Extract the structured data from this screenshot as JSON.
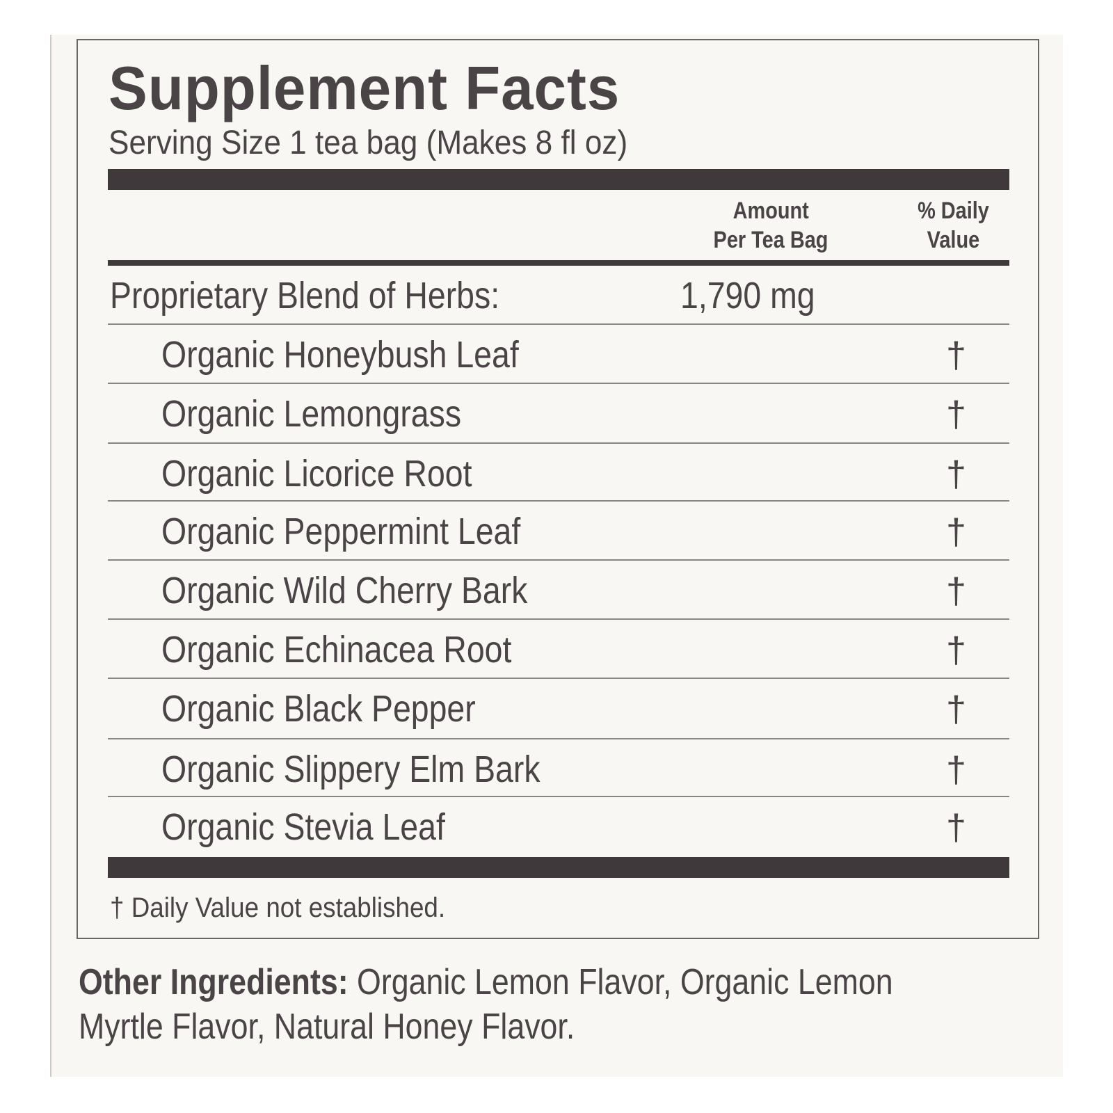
{
  "label": {
    "title": "Supplement Facts",
    "serving_size": "Serving Size 1 tea bag (Makes 8 fl oz)",
    "header": {
      "amount_line1": "Amount",
      "amount_line2": "Per Tea Bag",
      "dv_line1": "% Daily",
      "dv_line2": "Value"
    },
    "blend": {
      "name": "Proprietary Blend of Herbs:",
      "amount": "1,790 mg"
    },
    "ingredients": [
      {
        "name": "Organic Honeybush Leaf",
        "dv": "†"
      },
      {
        "name": "Organic Lemongrass",
        "dv": "†"
      },
      {
        "name": "Organic Licorice Root",
        "dv": "†"
      },
      {
        "name": "Organic Peppermint Leaf",
        "dv": "†"
      },
      {
        "name": "Organic Wild Cherry Bark",
        "dv": "†"
      },
      {
        "name": "Organic Echinacea Root",
        "dv": "†"
      },
      {
        "name": "Organic Black Pepper",
        "dv": "†"
      },
      {
        "name": "Organic Slippery Elm Bark",
        "dv": "†"
      },
      {
        "name": "Organic Stevia Leaf",
        "dv": "†"
      }
    ],
    "footnote": "† Daily Value not established."
  },
  "other_ingredients": {
    "label": "Other Ingredients:",
    "text": " Organic Lemon Flavor, Organic Lemon",
    "text_line2": "Myrtle Flavor, Natural Honey Flavor."
  },
  "colors": {
    "ink": "#4a4446",
    "paper": "#f8f7f3",
    "bar": "#3f393b"
  }
}
